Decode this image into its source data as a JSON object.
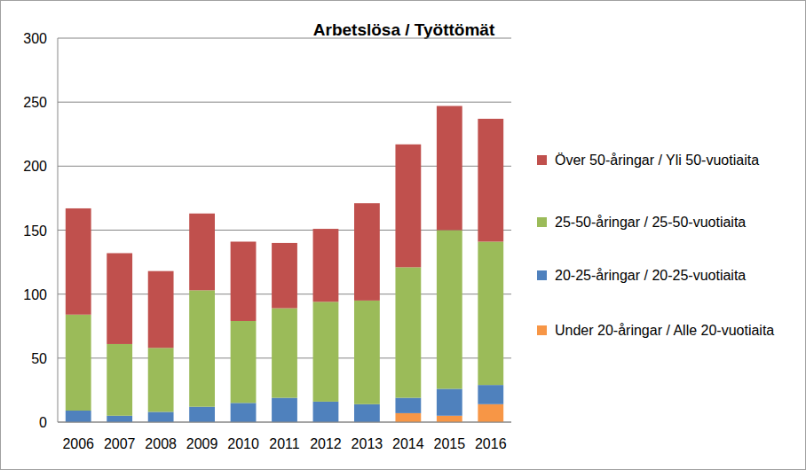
{
  "chart_data": {
    "type": "bar",
    "title": "Arbetslösa / Työttömät",
    "stacked": true,
    "grid": true,
    "legend": "right",
    "categories": [
      "2006",
      "2007",
      "2008",
      "2009",
      "2010",
      "2011",
      "2012",
      "2013",
      "2014",
      "2015",
      "2016"
    ],
    "series": [
      {
        "name": "Under 20-åringar / Alle 20-vuotiaita",
        "color": "#f79646",
        "values": [
          0,
          0,
          0,
          0,
          0,
          0,
          0,
          0,
          7,
          5,
          14
        ]
      },
      {
        "name": "20-25-åringar / 20-25-vuotiaita",
        "color": "#4f81bd",
        "values": [
          9,
          5,
          8,
          12,
          15,
          19,
          16,
          14,
          12,
          21,
          15
        ]
      },
      {
        "name": "25-50-åringar / 25-50-vuotiaita",
        "color": "#9bbb59",
        "values": [
          75,
          56,
          50,
          91,
          64,
          70,
          78,
          81,
          102,
          124,
          112
        ]
      },
      {
        "name": "Över 50-åringar / Yli 50-vuotiaita",
        "color": "#c0504d",
        "values": [
          83,
          71,
          60,
          60,
          62,
          51,
          57,
          76,
          96,
          97,
          96
        ]
      }
    ],
    "ylim": [
      0,
      300
    ],
    "yticks": [
      0,
      50,
      100,
      150,
      200,
      250,
      300
    ]
  }
}
